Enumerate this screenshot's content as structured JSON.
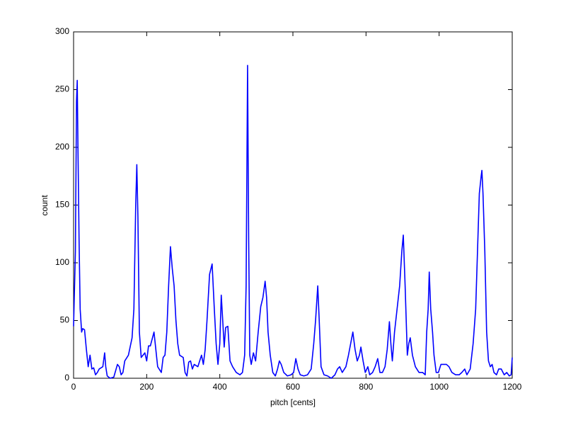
{
  "chart_data": {
    "type": "line",
    "x_label": "pitch [cents]",
    "y_label": "count",
    "color": "#0000ff",
    "xlim": [
      0,
      1200
    ],
    "ylim": [
      0,
      300
    ],
    "xticks": [
      0,
      200,
      400,
      600,
      800,
      1000,
      1200
    ],
    "yticks": [
      0,
      50,
      100,
      150,
      200,
      250,
      300
    ],
    "x": [
      0,
      5,
      8,
      10,
      12,
      15,
      18,
      22,
      25,
      30,
      35,
      40,
      45,
      50,
      55,
      60,
      65,
      70,
      80,
      85,
      88,
      92,
      100,
      110,
      120,
      125,
      130,
      135,
      140,
      150,
      160,
      165,
      170,
      173,
      176,
      180,
      185,
      190,
      195,
      200,
      205,
      210,
      220,
      225,
      230,
      240,
      245,
      250,
      255,
      260,
      265,
      270,
      275,
      280,
      285,
      290,
      300,
      305,
      310,
      315,
      320,
      325,
      330,
      340,
      350,
      355,
      360,
      365,
      372,
      379,
      385,
      390,
      395,
      400,
      404,
      408,
      412,
      416,
      422,
      428,
      435,
      445,
      455,
      462,
      468,
      472,
      476,
      479,
      482,
      486,
      492,
      498,
      505,
      512,
      518,
      524,
      528,
      532,
      538,
      545,
      552,
      558,
      563,
      568,
      575,
      585,
      595,
      602,
      608,
      614,
      620,
      630,
      640,
      650,
      657,
      662,
      668,
      672,
      677,
      685,
      695,
      705,
      715,
      722,
      728,
      735,
      745,
      752,
      758,
      764,
      770,
      776,
      782,
      786,
      792,
      798,
      805,
      810,
      818,
      825,
      832,
      838,
      845,
      852,
      858,
      864,
      868,
      872,
      878,
      885,
      892,
      898,
      902,
      907,
      911,
      913,
      917,
      921,
      927,
      935,
      945,
      955,
      962,
      966,
      970,
      973,
      977,
      982,
      986,
      992,
      998,
      1005,
      1012,
      1020,
      1027,
      1035,
      1045,
      1055,
      1062,
      1070,
      1076,
      1085,
      1093,
      1100,
      1105,
      1110,
      1115,
      1117,
      1120,
      1125,
      1130,
      1135,
      1140,
      1145,
      1150,
      1157,
      1163,
      1170,
      1178,
      1185,
      1192,
      1197,
      1200
    ],
    "values": [
      45,
      110,
      240,
      258,
      200,
      120,
      60,
      40,
      43,
      42,
      25,
      10,
      20,
      8,
      9,
      3,
      5,
      8,
      10,
      22,
      10,
      2,
      0,
      1,
      12,
      10,
      3,
      5,
      15,
      20,
      35,
      60,
      150,
      185,
      140,
      40,
      18,
      20,
      22,
      15,
      28,
      28,
      40,
      25,
      10,
      5,
      18,
      20,
      40,
      80,
      114,
      95,
      80,
      50,
      30,
      20,
      18,
      5,
      2,
      14,
      15,
      8,
      12,
      10,
      20,
      12,
      25,
      50,
      90,
      99,
      60,
      30,
      12,
      30,
      72,
      50,
      27,
      44,
      45,
      15,
      10,
      5,
      3,
      5,
      20,
      80,
      271,
      120,
      20,
      12,
      22,
      15,
      40,
      62,
      70,
      84,
      70,
      40,
      20,
      5,
      2,
      8,
      15,
      12,
      5,
      2,
      3,
      5,
      17,
      8,
      3,
      2,
      3,
      8,
      30,
      50,
      80,
      50,
      10,
      3,
      2,
      0,
      3,
      8,
      10,
      5,
      10,
      20,
      30,
      40,
      25,
      15,
      20,
      27,
      15,
      5,
      10,
      3,
      5,
      10,
      17,
      5,
      5,
      10,
      25,
      49,
      30,
      15,
      40,
      60,
      80,
      110,
      124,
      80,
      40,
      20,
      30,
      35,
      20,
      10,
      5,
      5,
      3,
      40,
      60,
      92,
      60,
      40,
      20,
      5,
      5,
      12,
      12,
      12,
      10,
      5,
      3,
      3,
      5,
      8,
      3,
      8,
      30,
      60,
      110,
      160,
      175,
      180,
      160,
      110,
      40,
      15,
      10,
      12,
      5,
      3,
      8,
      8,
      3,
      5,
      2,
      3,
      18
    ]
  }
}
